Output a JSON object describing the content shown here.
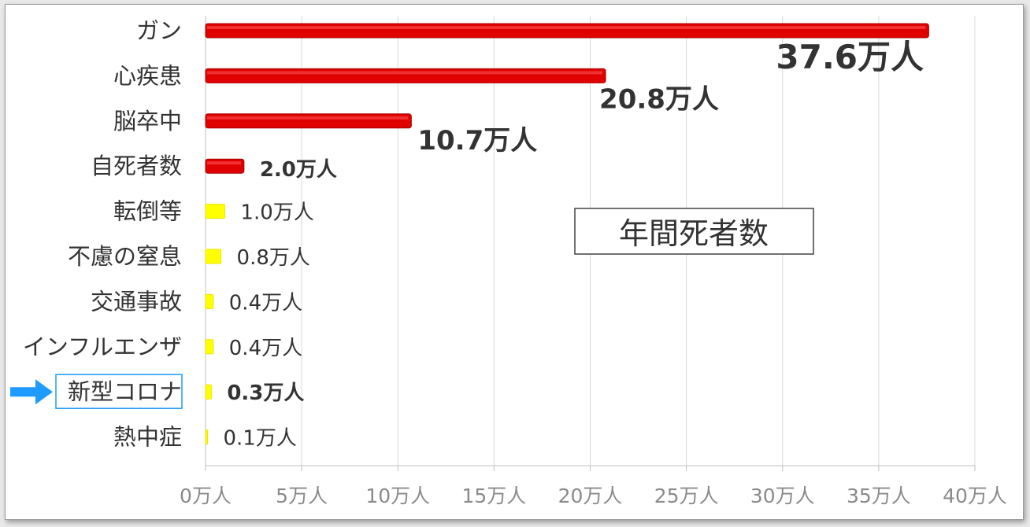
{
  "chart_data": {
    "type": "bar",
    "orientation": "horizontal",
    "categories": [
      "ガン",
      "心疾患",
      "脳卒中",
      "自死者数",
      "転倒等",
      "不慮の窒息",
      "交通事故",
      "インフルエンザ",
      "新型コロナ",
      "熱中症"
    ],
    "values": [
      37.6,
      20.8,
      10.7,
      2.0,
      1.0,
      0.8,
      0.4,
      0.4,
      0.3,
      0.1
    ],
    "data_labels": [
      "37.6万人",
      "20.8万人",
      "10.7万人",
      "2.0万人",
      "1.0万人",
      "0.8万人",
      "0.4万人",
      "0.4万人",
      "0.3万人",
      "0.1万人"
    ],
    "bar_colors": [
      "#e00000",
      "#e00000",
      "#e00000",
      "#e00000",
      "#ffff00",
      "#ffff00",
      "#ffff00",
      "#ffff00",
      "#ffff00",
      "#ffff00"
    ],
    "highlighted_category": "新型コロナ",
    "highlight_color": "#1e9bff",
    "xlim": [
      0,
      40
    ],
    "xticks": [
      0,
      5,
      10,
      15,
      20,
      25,
      30,
      35,
      40
    ],
    "xtick_labels": [
      "0万人",
      "5万人",
      "10万人",
      "15万人",
      "20万人",
      "25万人",
      "30万人",
      "35万人",
      "40万人"
    ],
    "grid": "vertical",
    "annotation": "年間死者数",
    "xlabel": "",
    "ylabel": "",
    "title": ""
  }
}
